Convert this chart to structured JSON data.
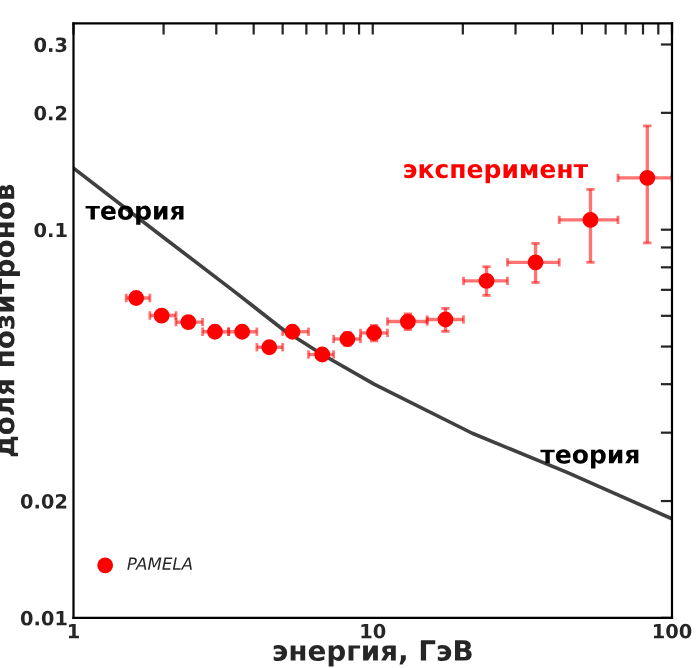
{
  "chart_data": {
    "type": "scatter",
    "xlabel": "энергия, ГэВ",
    "ylabel": "доля позитронов",
    "log": "xy",
    "xlim": [
      1,
      100
    ],
    "ylim": [
      0.01,
      0.34
    ],
    "xticks": [
      1,
      {
        "value": 2,
        "label": null
      },
      {
        "value": 3,
        "label": null
      },
      {
        "value": 4,
        "label": null
      },
      {
        "value": 5,
        "label": null
      },
      {
        "value": 6,
        "label": null
      },
      {
        "value": 7,
        "label": null
      },
      {
        "value": 8,
        "label": null
      },
      {
        "value": 9,
        "label": null
      },
      10,
      {
        "value": 20,
        "label": null
      },
      {
        "value": 30,
        "label": null
      },
      {
        "value": 40,
        "label": null
      },
      {
        "value": 50,
        "label": null
      },
      {
        "value": 60,
        "label": null
      },
      {
        "value": 70,
        "label": null
      },
      {
        "value": 80,
        "label": null
      },
      {
        "value": 90,
        "label": null
      },
      100
    ],
    "yticks": [
      0.01,
      0.02,
      {
        "value": 0.03,
        "label": null
      },
      {
        "value": 0.04,
        "label": null
      },
      {
        "value": 0.05,
        "label": null
      },
      {
        "value": 0.06,
        "label": null
      },
      {
        "value": 0.07,
        "label": null
      },
      {
        "value": 0.08,
        "label": null
      },
      {
        "value": 0.09,
        "label": null
      },
      0.1,
      0.2,
      0.3
    ],
    "grid": false,
    "legend": "bottom left",
    "series": [
      {
        "name": "PAMELA",
        "color": "#ff0000",
        "marker": "circle",
        "x": [
          1.62,
          1.97,
          2.42,
          2.97,
          3.66,
          4.51,
          5.39,
          6.78,
          8.23,
          10.1,
          13.1,
          17.5,
          24.0,
          35.0,
          53.4,
          82.7
        ],
        "values": [
          0.0667,
          0.0601,
          0.0578,
          0.0546,
          0.0546,
          0.0498,
          0.0546,
          0.0477,
          0.0523,
          0.0542,
          0.058,
          0.0587,
          0.0738,
          0.0824,
          0.106,
          0.136
        ],
        "errors": [
          0.001,
          0.001,
          0.001,
          0.001,
          0.001,
          0.001,
          0.001,
          0.001,
          0.002,
          0.0025,
          0.0027,
          0.004,
          [
            0.0677,
            0.0803
          ],
          [
            0.0731,
            0.0922
          ],
          [
            0.0824,
            0.127
          ],
          [
            0.0925,
            0.185
          ]
        ],
        "xerrors": [
          [
            1.5,
            1.8
          ],
          [
            1.8,
            2.2
          ],
          [
            2.2,
            2.7
          ],
          [
            2.7,
            3.3
          ],
          [
            3.3,
            4.1
          ],
          [
            4.1,
            5.0
          ],
          [
            5.0,
            6.1
          ],
          [
            6.1,
            7.4
          ],
          [
            7.4,
            9.1
          ],
          [
            9.1,
            11.2
          ],
          [
            11.2,
            15.2
          ],
          [
            15.2,
            20.1
          ],
          [
            20.1,
            28.2
          ],
          [
            28.2,
            42
          ],
          [
            42,
            66
          ],
          [
            66,
            100
          ]
        ]
      },
      {
        "type": "line",
        "color": "#404040",
        "line_style": "solid",
        "marker": "none",
        "x": [
          1,
          2,
          3.4,
          5.0,
          6.78,
          10.1,
          21.5,
          44.6,
          100
        ],
        "values": [
          0.144,
          0.0955,
          0.0699,
          0.0554,
          0.0477,
          0.04,
          0.0299,
          0.0237,
          0.018
        ]
      }
    ],
    "annotations": [
      "теория",
      "эксперимент",
      "теория"
    ]
  }
}
